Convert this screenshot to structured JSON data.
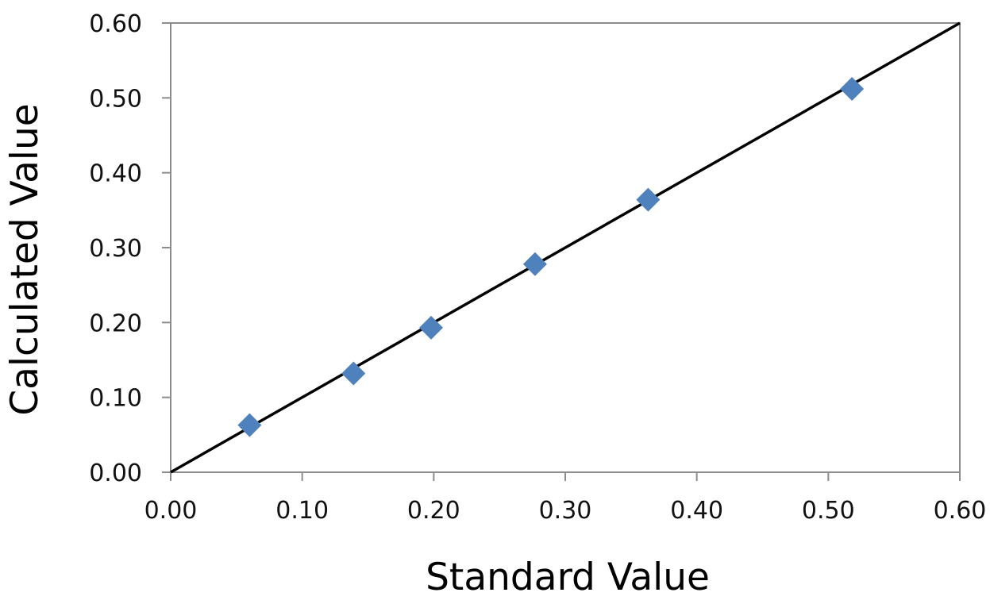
{
  "chart_data": {
    "type": "scatter",
    "xlabel": "Standard Value",
    "ylabel": "Calculated Value",
    "xlim": [
      0,
      0.6
    ],
    "ylim": [
      0,
      0.6
    ],
    "x_ticks": [
      "0.00",
      "0.10",
      "0.20",
      "0.30",
      "0.40",
      "0.50",
      "0.60"
    ],
    "y_ticks": [
      "0.00",
      "0.10",
      "0.20",
      "0.30",
      "0.40",
      "0.50",
      "0.60"
    ],
    "grid": false,
    "legend": "none",
    "series": [
      {
        "marker": "diamond",
        "color": "#4f81bd",
        "points": [
          {
            "x": 0.06,
            "y": 0.063
          },
          {
            "x": 0.139,
            "y": 0.132
          },
          {
            "x": 0.198,
            "y": 0.193
          },
          {
            "x": 0.277,
            "y": 0.278
          },
          {
            "x": 0.363,
            "y": 0.364
          },
          {
            "x": 0.518,
            "y": 0.512
          }
        ]
      }
    ],
    "reference_line": {
      "type": "identity",
      "from": [
        0,
        0
      ],
      "to": [
        0.6,
        0.6
      ],
      "color": "#000000"
    }
  }
}
